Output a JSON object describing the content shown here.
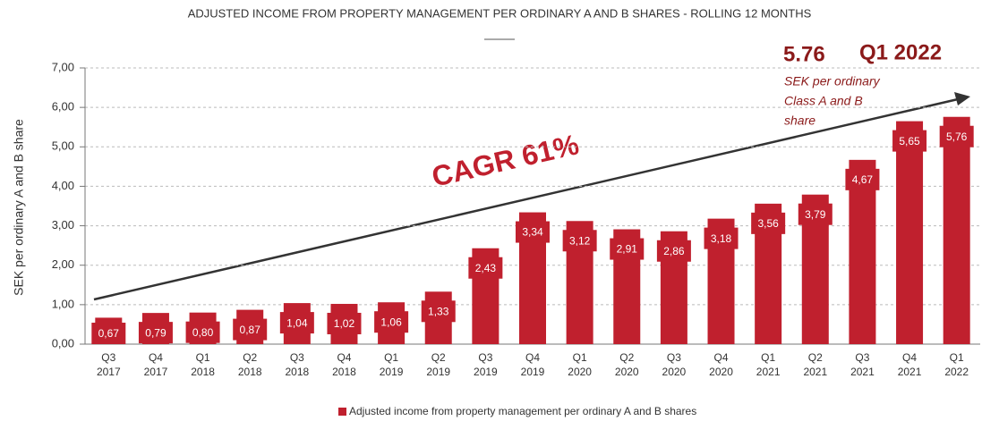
{
  "chart_data": {
    "type": "bar",
    "title": "ADJUSTED INCOME FROM PROPERTY MANAGEMENT PER ORDINARY A AND B SHARES - ROLLING 12 MONTHS",
    "y_label": "SEK per ordinary A and B share",
    "categories": [
      [
        "Q3",
        "2017"
      ],
      [
        "Q4",
        "2017"
      ],
      [
        "Q1",
        "2018"
      ],
      [
        "Q2",
        "2018"
      ],
      [
        "Q3",
        "2018"
      ],
      [
        "Q4",
        "2018"
      ],
      [
        "Q1",
        "2019"
      ],
      [
        "Q2",
        "2019"
      ],
      [
        "Q3",
        "2019"
      ],
      [
        "Q4",
        "2019"
      ],
      [
        "Q1",
        "2020"
      ],
      [
        "Q2",
        "2020"
      ],
      [
        "Q3",
        "2020"
      ],
      [
        "Q4",
        "2020"
      ],
      [
        "Q1",
        "2021"
      ],
      [
        "Q2",
        "2021"
      ],
      [
        "Q3",
        "2021"
      ],
      [
        "Q4",
        "2021"
      ],
      [
        "Q1",
        "2022"
      ]
    ],
    "series": [
      {
        "name": "Adjusted income from property management per ordinary A and B shares",
        "color": "#c0202e",
        "values": [
          0.67,
          0.79,
          0.8,
          0.87,
          1.04,
          1.02,
          1.06,
          1.33,
          2.43,
          3.34,
          3.12,
          2.91,
          2.86,
          3.18,
          3.56,
          3.79,
          4.67,
          5.65,
          5.76
        ],
        "value_labels": [
          "0,67",
          "0,79",
          "0,80",
          "0,87",
          "1,04",
          "1,02",
          "1,06",
          "1,33",
          "2,43",
          "3,34",
          "3,12",
          "2,91",
          "2,86",
          "3,18",
          "3,56",
          "3,79",
          "4,67",
          "5,65",
          "5,76"
        ]
      }
    ],
    "ylim": [
      0,
      7
    ],
    "yticks": [
      {
        "value": 0,
        "label": "0,00"
      },
      {
        "value": 1,
        "label": "1,00"
      },
      {
        "value": 2,
        "label": "2,00"
      },
      {
        "value": 3,
        "label": "3,00"
      },
      {
        "value": 4,
        "label": "4,00"
      },
      {
        "value": 5,
        "label": "5,00"
      },
      {
        "value": 6,
        "label": "6,00"
      },
      {
        "value": 7,
        "label": "7,00"
      }
    ],
    "grid": true,
    "legend": "bottom",
    "annotations": {
      "headline_value": "5.76",
      "headline_period": "Q1 2022",
      "note": [
        "SEK per ordinary",
        "Class A and B",
        "share"
      ],
      "trend": "CAGR 61%"
    }
  }
}
